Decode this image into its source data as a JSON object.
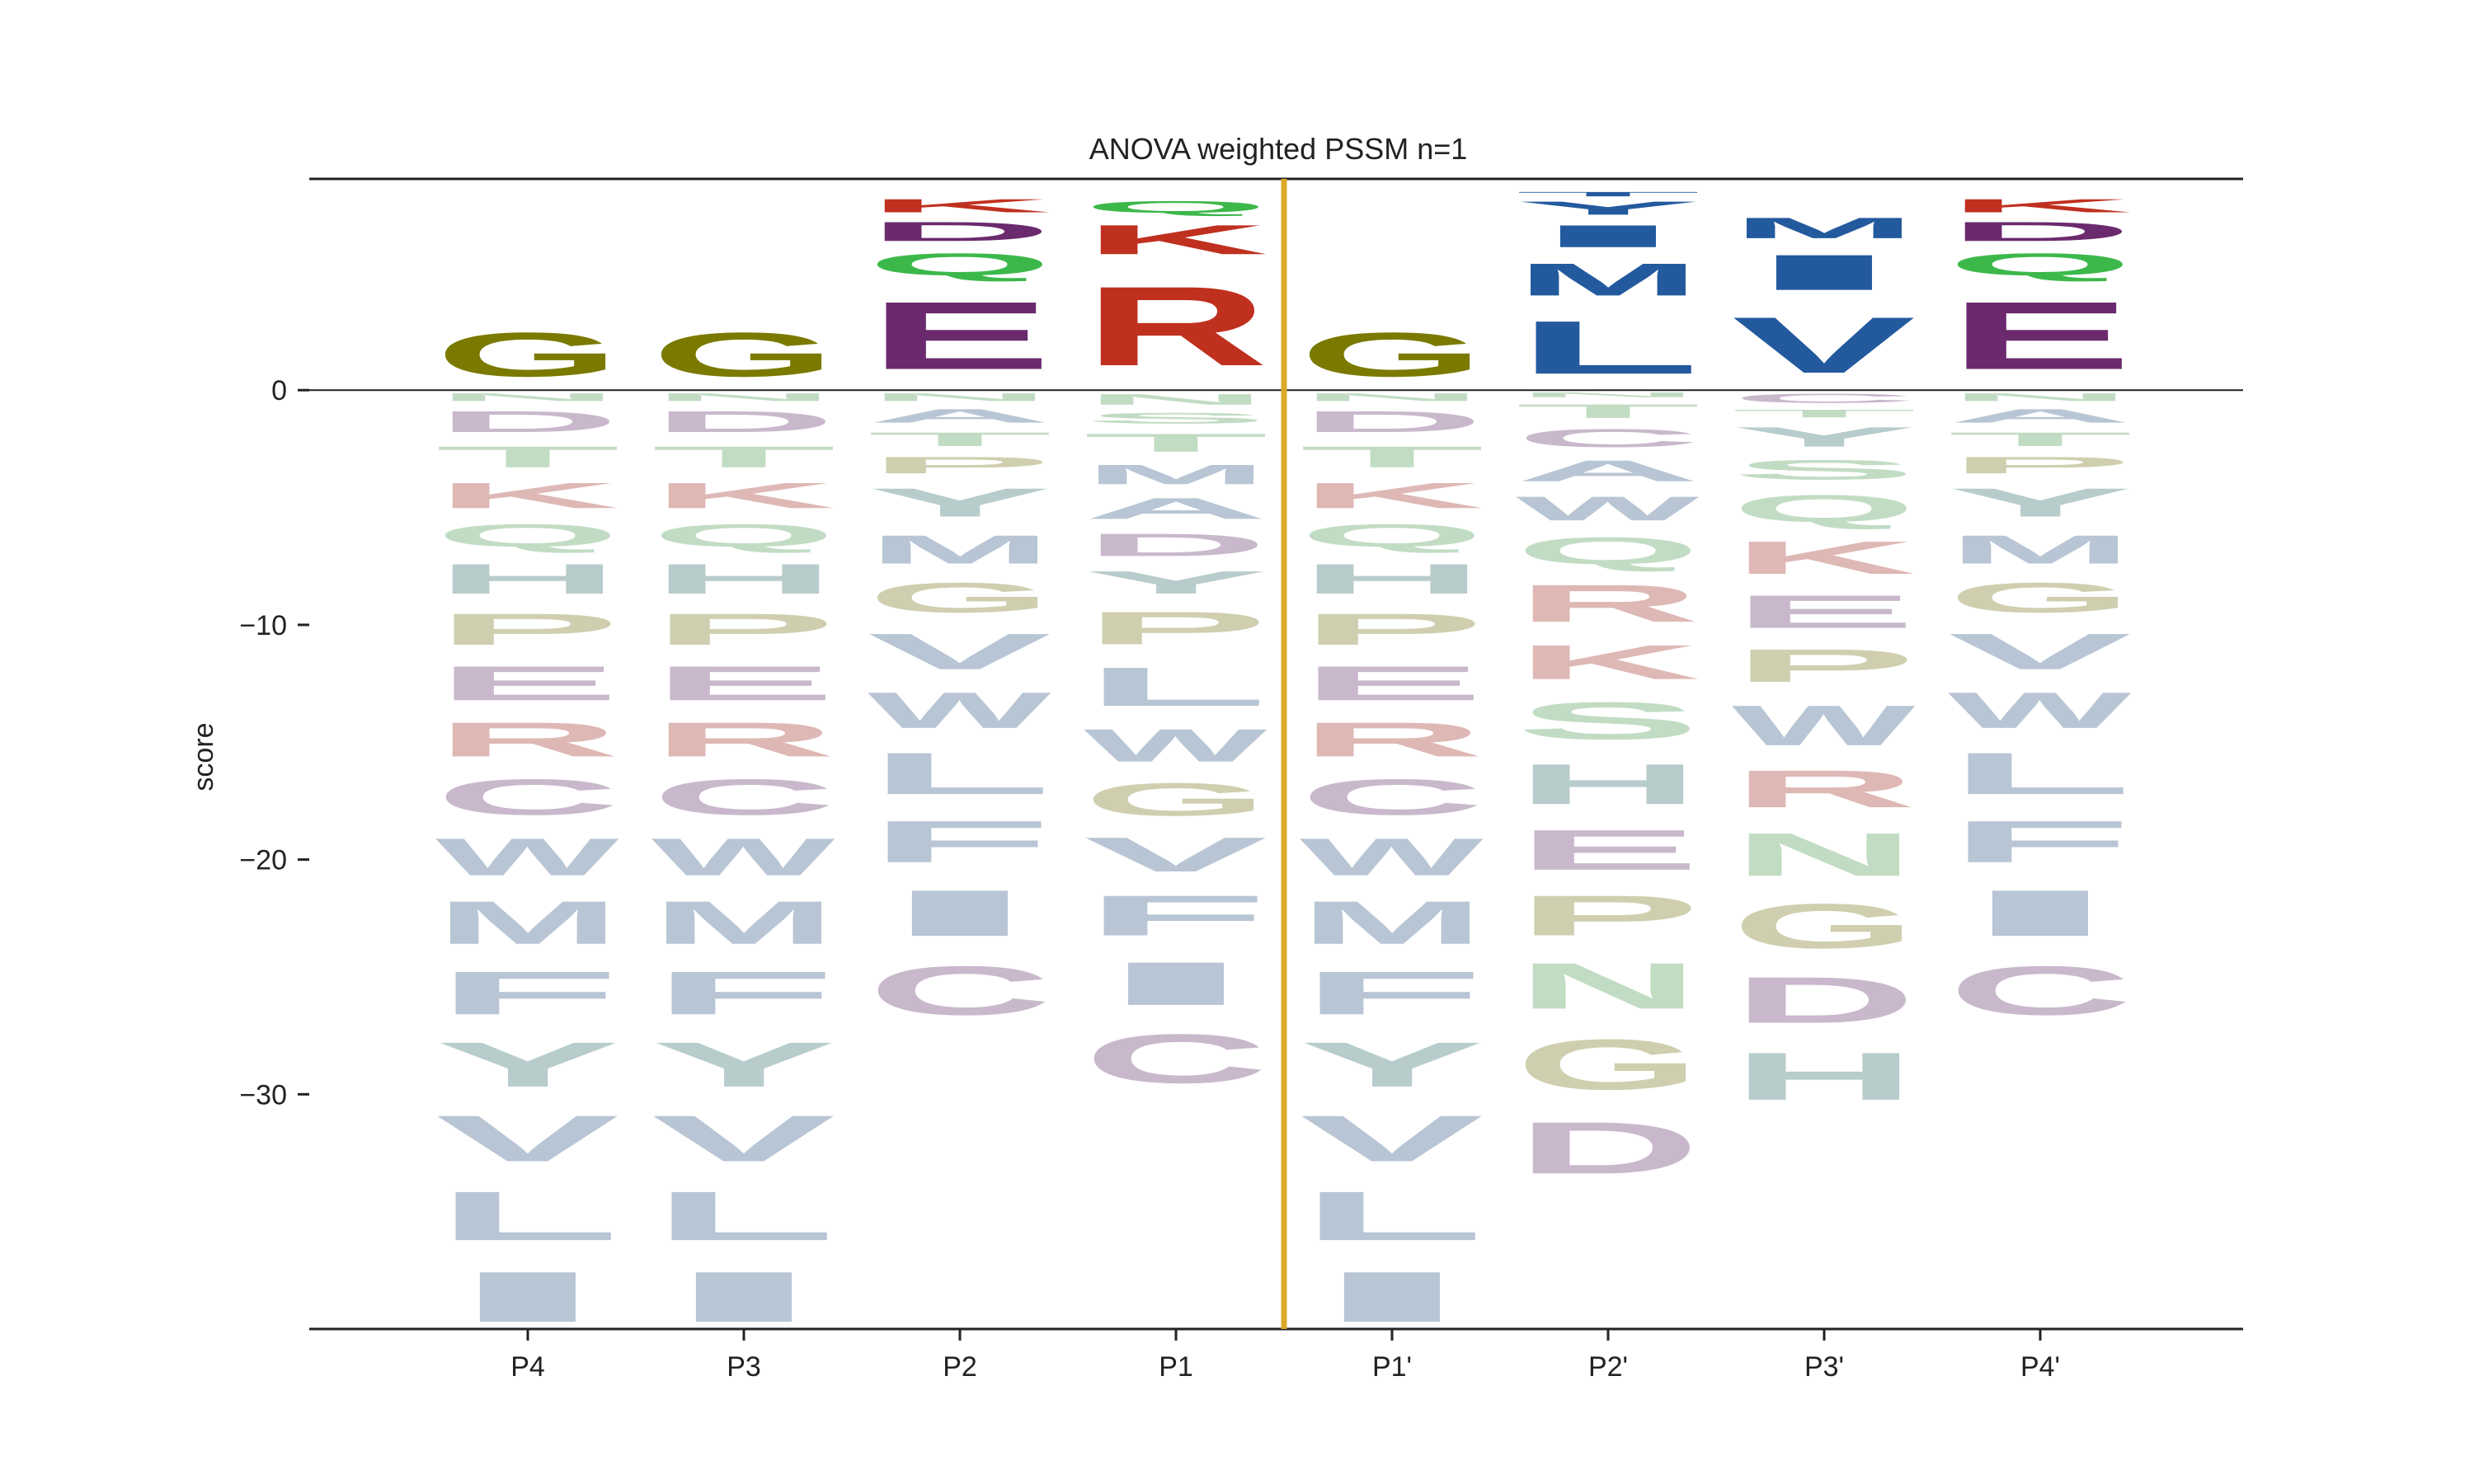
{
  "chart_data": {
    "type": "sequence-logo",
    "title": "ANOVA weighted PSSM n=1",
    "ylabel": "score",
    "ylim": [
      -40,
      9
    ],
    "yticks": [
      0,
      -10,
      -20,
      -30
    ],
    "positions": [
      "P4",
      "P3",
      "P2",
      "P1",
      "P1'",
      "P2'",
      "P3'",
      "P4'"
    ],
    "cleavage_after_position": "P1",
    "colors": {
      "G": "#7a7a00",
      "E": "#6b2a6e",
      "R": "#c0301f",
      "K": "#c0301f",
      "Q": "#3cb84a",
      "D": "#6b2a6e",
      "L": "#235a9e",
      "M": "#235a9e",
      "I": "#235a9e",
      "V": "#235a9e",
      "Y": "#235a9e",
      "T": "#235a9e",
      "faded_G": "#cfcfb0",
      "faded_P": "#cfcfb0",
      "faded_acid": "#c9b8cc",
      "faded_base": "#deb8b5",
      "faded_polar": "#c2dcc4",
      "faded_hydro": "#b8c5d4",
      "faded_aromatic": "#b7cccb",
      "cleavage_line": "#dca928"
    },
    "columns": [
      {
        "position": "P4",
        "positive": [
          [
            "G",
            3.0
          ]
        ],
        "negative": [
          [
            "N",
            0.6
          ],
          [
            "D",
            1.5
          ],
          [
            "T",
            1.5
          ],
          [
            "K",
            1.8
          ],
          [
            "Q",
            1.6
          ],
          [
            "H",
            2.1
          ],
          [
            "P",
            2.2
          ],
          [
            "E",
            2.4
          ],
          [
            "R",
            2.4
          ],
          [
            "C",
            2.5
          ],
          [
            "W",
            2.6
          ],
          [
            "M",
            3.0
          ],
          [
            "F",
            3.0
          ],
          [
            "Y",
            3.1
          ],
          [
            "V",
            3.2
          ],
          [
            "L",
            3.4
          ],
          [
            "I",
            3.5
          ]
        ]
      },
      {
        "position": "P3",
        "positive": [
          [
            "G",
            3.0
          ]
        ],
        "negative": [
          [
            "N",
            0.6
          ],
          [
            "D",
            1.5
          ],
          [
            "T",
            1.5
          ],
          [
            "K",
            1.8
          ],
          [
            "Q",
            1.6
          ],
          [
            "H",
            2.1
          ],
          [
            "P",
            2.2
          ],
          [
            "E",
            2.4
          ],
          [
            "R",
            2.4
          ],
          [
            "C",
            2.5
          ],
          [
            "W",
            2.6
          ],
          [
            "M",
            3.0
          ],
          [
            "F",
            3.0
          ],
          [
            "Y",
            3.1
          ],
          [
            "V",
            3.2
          ],
          [
            "L",
            3.4
          ],
          [
            "I",
            3.5
          ]
        ]
      },
      {
        "position": "P2",
        "positive": [
          [
            "E",
            4.6
          ],
          [
            "Q",
            1.5
          ],
          [
            "D",
            1.3
          ],
          [
            "K",
            0.9
          ]
        ],
        "negative": [
          [
            "N",
            0.6
          ],
          [
            "A",
            1.0
          ],
          [
            "T",
            1.0
          ],
          [
            "P",
            1.2
          ],
          [
            "Y",
            2.0
          ],
          [
            "M",
            2.0
          ],
          [
            "G",
            2.1
          ],
          [
            "V",
            2.5
          ],
          [
            "W",
            2.5
          ],
          [
            "L",
            2.9
          ],
          [
            "F",
            2.9
          ],
          [
            "I",
            3.2
          ],
          [
            "C",
            3.4
          ]
        ]
      },
      {
        "position": "P1",
        "positive": [
          [
            "R",
            5.4
          ],
          [
            "K",
            2.0
          ],
          [
            "Q",
            0.8
          ]
        ],
        "negative": [
          [
            "N",
            0.8
          ],
          [
            "S",
            0.8
          ],
          [
            "T",
            1.3
          ],
          [
            "M",
            1.4
          ],
          [
            "A",
            1.5
          ],
          [
            "D",
            1.6
          ],
          [
            "Y",
            1.6
          ],
          [
            "P",
            2.3
          ],
          [
            "L",
            2.7
          ],
          [
            "W",
            2.3
          ],
          [
            "G",
            2.3
          ],
          [
            "V",
            2.4
          ],
          [
            "F",
            2.8
          ],
          [
            "I",
            3.0
          ],
          [
            "C",
            3.4
          ]
        ]
      },
      {
        "position": "P1'",
        "positive": [
          [
            "G",
            3.0
          ]
        ],
        "negative": [
          [
            "N",
            0.6
          ],
          [
            "D",
            1.5
          ],
          [
            "T",
            1.5
          ],
          [
            "K",
            1.8
          ],
          [
            "Q",
            1.6
          ],
          [
            "H",
            2.1
          ],
          [
            "P",
            2.2
          ],
          [
            "E",
            2.4
          ],
          [
            "R",
            2.4
          ],
          [
            "C",
            2.5
          ],
          [
            "W",
            2.6
          ],
          [
            "M",
            3.0
          ],
          [
            "F",
            3.0
          ],
          [
            "Y",
            3.1
          ],
          [
            "V",
            3.2
          ],
          [
            "L",
            3.4
          ],
          [
            "I",
            3.5
          ]
        ]
      },
      {
        "position": "P2'",
        "positive": [
          [
            "L",
            3.6
          ],
          [
            "M",
            2.2
          ],
          [
            "I",
            1.5
          ],
          [
            "Y",
            0.9
          ],
          [
            "T",
            0.3
          ]
        ],
        "negative": [
          [
            "N",
            0.4
          ],
          [
            "T",
            1.0
          ],
          [
            "C",
            1.3
          ],
          [
            "A",
            1.5
          ],
          [
            "W",
            1.7
          ],
          [
            "Q",
            1.9
          ],
          [
            "R",
            2.6
          ],
          [
            "K",
            2.4
          ],
          [
            "S",
            2.6
          ],
          [
            "H",
            2.8
          ],
          [
            "E",
            2.8
          ],
          [
            "P",
            2.8
          ],
          [
            "N",
            3.2
          ],
          [
            "G",
            3.5
          ],
          [
            "D",
            3.6
          ]
        ]
      },
      {
        "position": "P3'",
        "positive": [
          [
            "V",
            3.8
          ],
          [
            "I",
            2.4
          ],
          [
            "M",
            1.4
          ]
        ],
        "negative": [
          [
            "C",
            0.7
          ],
          [
            "T",
            0.6
          ],
          [
            "Y",
            1.4
          ],
          [
            "S",
            1.4
          ],
          [
            "Q",
            1.9
          ],
          [
            "K",
            2.3
          ],
          [
            "E",
            2.3
          ],
          [
            "P",
            2.3
          ],
          [
            "W",
            2.8
          ],
          [
            "R",
            2.6
          ],
          [
            "N",
            3.0
          ],
          [
            "G",
            3.1
          ],
          [
            "D",
            3.2
          ],
          [
            "H",
            3.3
          ]
        ]
      },
      {
        "position": "P4'",
        "positive": [
          [
            "E",
            4.6
          ],
          [
            "Q",
            1.5
          ],
          [
            "D",
            1.3
          ],
          [
            "K",
            0.9
          ]
        ],
        "negative": [
          [
            "N",
            0.6
          ],
          [
            "A",
            1.0
          ],
          [
            "T",
            1.0
          ],
          [
            "P",
            1.2
          ],
          [
            "Y",
            2.0
          ],
          [
            "M",
            2.0
          ],
          [
            "G",
            2.1
          ],
          [
            "V",
            2.5
          ],
          [
            "W",
            2.5
          ],
          [
            "L",
            2.9
          ],
          [
            "F",
            2.9
          ],
          [
            "I",
            3.2
          ],
          [
            "C",
            3.4
          ]
        ]
      }
    ]
  }
}
